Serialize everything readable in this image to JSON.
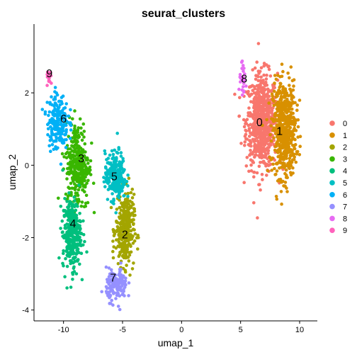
{
  "chart_data": {
    "type": "scatter",
    "title": "seurat_clusters",
    "xlabel": "umap_1",
    "ylabel": "umap_2",
    "xlim": [
      -12.5,
      11.5
    ],
    "ylim": [
      -4.3,
      3.9
    ],
    "x_ticks": [
      -10,
      -5,
      0,
      5,
      10
    ],
    "y_ticks": [
      -4,
      -2,
      0,
      2
    ],
    "x_tick_labels": [
      "-10",
      "-5",
      "0",
      "5",
      "10"
    ],
    "y_tick_labels": [
      "-4",
      "-2",
      "0",
      "2"
    ],
    "grid": false,
    "legend_position": "right",
    "series": [
      {
        "name": "0",
        "color": "#F8766D",
        "center": [
          6.8,
          1.2
        ],
        "spread": [
          1.2,
          1.2
        ],
        "label_pos": [
          6.6,
          1.2
        ]
      },
      {
        "name": "1",
        "color": "#D89000",
        "center": [
          8.7,
          1.0
        ],
        "spread": [
          0.9,
          1.2
        ],
        "label_pos": [
          8.3,
          0.95
        ]
      },
      {
        "name": "2",
        "color": "#A3A500",
        "center": [
          -4.8,
          -1.8
        ],
        "spread": [
          0.7,
          0.9
        ],
        "label_pos": [
          -4.8,
          -1.9
        ]
      },
      {
        "name": "3",
        "color": "#39B600",
        "center": [
          -8.8,
          0.0
        ],
        "spread": [
          0.9,
          1.1
        ],
        "label_pos": [
          -8.5,
          0.2
        ]
      },
      {
        "name": "4",
        "color": "#00BF7D",
        "center": [
          -9.3,
          -1.9
        ],
        "spread": [
          0.7,
          0.9
        ],
        "label_pos": [
          -9.2,
          -1.6
        ]
      },
      {
        "name": "5",
        "color": "#00BFC4",
        "center": [
          -5.6,
          -0.3
        ],
        "spread": [
          0.8,
          0.6
        ],
        "label_pos": [
          -5.7,
          -0.3
        ]
      },
      {
        "name": "6",
        "color": "#00B0F6",
        "center": [
          -10.5,
          1.2
        ],
        "spread": [
          0.8,
          0.7
        ],
        "label_pos": [
          -10.0,
          1.3
        ]
      },
      {
        "name": "7",
        "color": "#9590FF",
        "center": [
          -5.5,
          -3.3
        ],
        "spread": [
          0.8,
          0.4
        ],
        "label_pos": [
          -5.8,
          -3.1
        ]
      },
      {
        "name": "8",
        "color": "#E76BF3",
        "center": [
          5.2,
          2.3
        ],
        "spread": [
          0.3,
          0.4
        ],
        "label_pos": [
          5.3,
          2.4
        ]
      },
      {
        "name": "9",
        "color": "#FF62BC",
        "center": [
          -11.2,
          2.4
        ],
        "spread": [
          0.2,
          0.2
        ],
        "label_pos": [
          -11.2,
          2.55
        ]
      }
    ]
  }
}
